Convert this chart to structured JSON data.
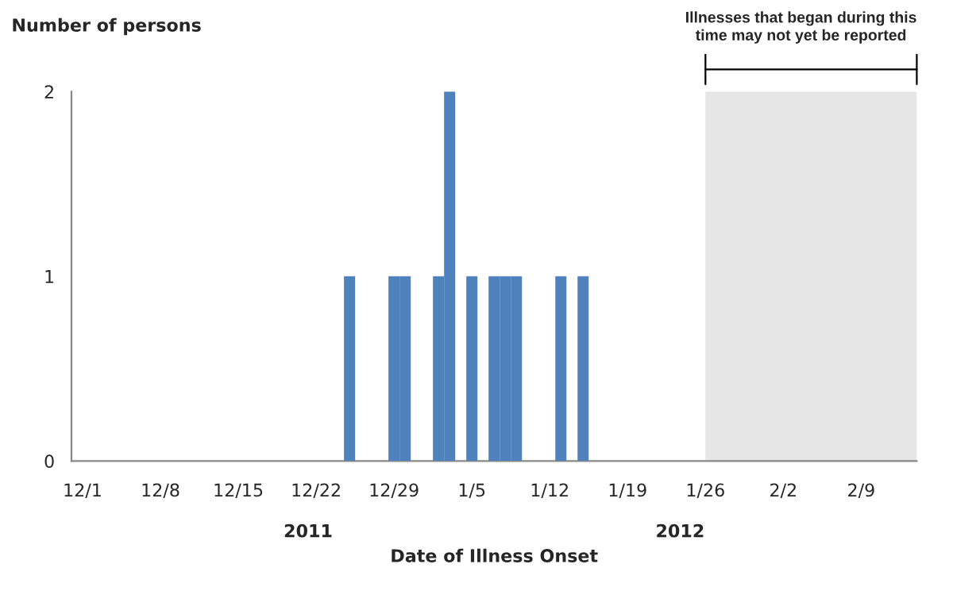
{
  "chart_data": {
    "type": "bar",
    "xlabel": "Date of Illness Onset",
    "ylabel": "Number of persons",
    "x": [
      "2011-12-25",
      "2011-12-29",
      "2011-12-30",
      "2012-01-02",
      "2012-01-03",
      "2012-01-05",
      "2012-01-07",
      "2012-01-08",
      "2012-01-09",
      "2012-01-13",
      "2012-01-15"
    ],
    "values": [
      1,
      1,
      1,
      1,
      2,
      1,
      1,
      1,
      1,
      1,
      1
    ],
    "color": "#4f81bd",
    "xlim": [
      "2011-11-30",
      "2012-02-14"
    ],
    "xticks": [
      {
        "value": "2011-12-01",
        "label": "12/1"
      },
      {
        "value": "2011-12-08",
        "label": "12/8"
      },
      {
        "value": "2011-12-15",
        "label": "12/15"
      },
      {
        "value": "2011-12-22",
        "label": "12/22"
      },
      {
        "value": "2011-12-29",
        "label": "12/29"
      },
      {
        "value": "2012-01-05",
        "label": "1/5"
      },
      {
        "value": "2012-01-12",
        "label": "1/12"
      },
      {
        "value": "2012-01-19",
        "label": "1/19"
      },
      {
        "value": "2012-01-26",
        "label": "1/26"
      },
      {
        "value": "2012-02-02",
        "label": "2/2"
      },
      {
        "value": "2012-02-09",
        "label": "2/9"
      }
    ],
    "ylim": [
      0,
      2
    ],
    "yticks": [
      0,
      1,
      2
    ],
    "bands": [
      {
        "axis": "x",
        "from": "2012-01-26",
        "to": "2012-02-14",
        "label": "Illnesses that began during this\ntime may not yet be reported",
        "color": "#e6e6e6"
      }
    ],
    "annotations": [
      "2011",
      "2012"
    ],
    "grid": false,
    "legend": false
  }
}
